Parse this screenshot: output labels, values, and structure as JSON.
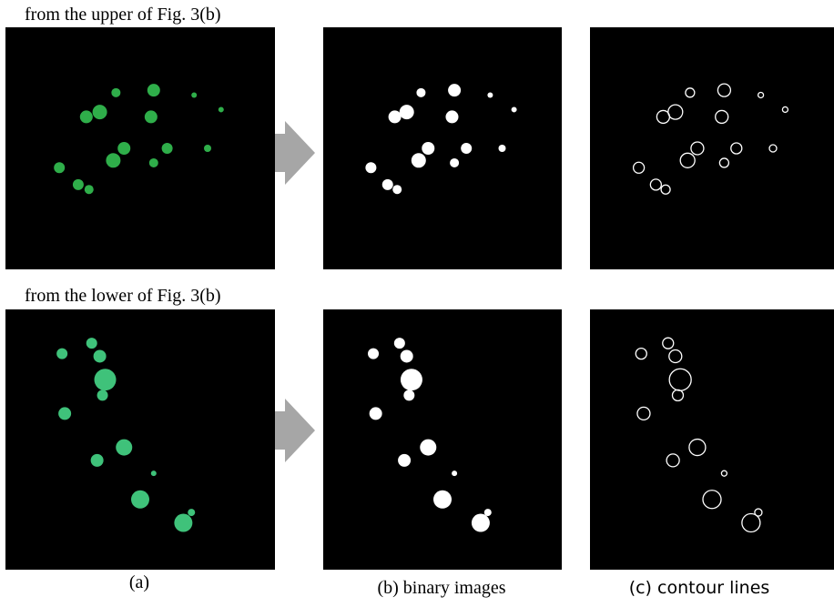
{
  "figure": {
    "row_labels": [
      "from the upper of Fig. 3(b)",
      "from the lower of Fig. 3(b)"
    ],
    "captions": [
      "(a)",
      "(b) binary images",
      "(c) contour lines"
    ]
  }
}
